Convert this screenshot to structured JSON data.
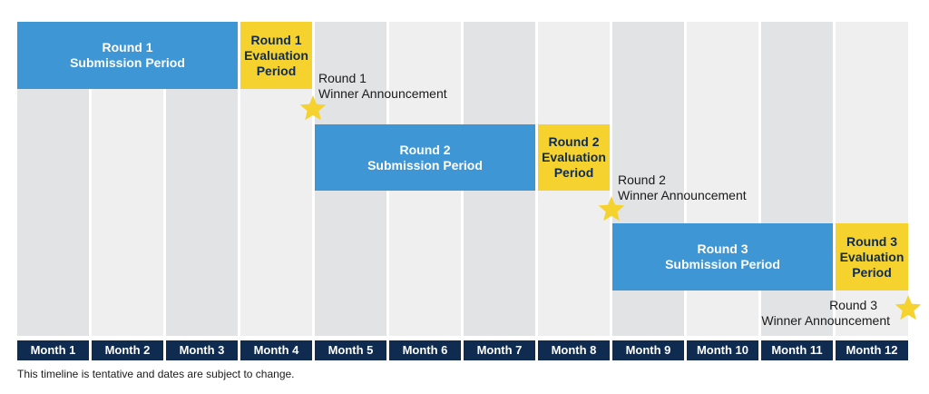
{
  "months": [
    "Month 1",
    "Month 2",
    "Month 3",
    "Month 4",
    "Month 5",
    "Month 6",
    "Month 7",
    "Month 8",
    "Month 9",
    "Month 10",
    "Month 11",
    "Month 12"
  ],
  "rounds": [
    {
      "submission": [
        "Round 1",
        "Submission Period"
      ],
      "evaluation": [
        "Round 1",
        "Evaluation",
        "Period"
      ],
      "announcement": [
        "Round 1",
        "Winner Announcement"
      ]
    },
    {
      "submission": [
        "Round 2",
        "Submission Period"
      ],
      "evaluation": [
        "Round 2",
        "Evaluation",
        "Period"
      ],
      "announcement": [
        "Round 2",
        "Winner Announcement"
      ]
    },
    {
      "submission": [
        "Round 3",
        "Submission Period"
      ],
      "evaluation": [
        "Round 3",
        "Evaluation",
        "Period"
      ],
      "announcement": [
        "Round 3",
        "Winner Announcement"
      ]
    }
  ],
  "footnote": "This timeline is tentative and dates are subject to change.",
  "colors": {
    "submission": "#3f96d4",
    "evaluation": "#f6d22e",
    "month_header": "#0f2b4f",
    "star": "#f6d22e"
  },
  "icons": {
    "announcement_marker": "star-icon"
  }
}
